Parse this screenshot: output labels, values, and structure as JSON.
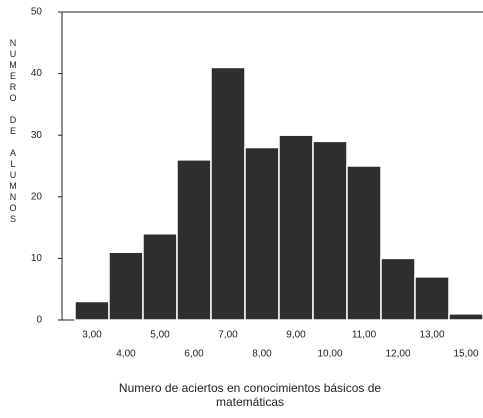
{
  "chart_data": {
    "type": "bar",
    "x_label": "Numero  de aciertos en conocimientos básicos de matemáticas",
    "y_label": "NUMERO DE ALUMNOS",
    "categories": [
      "3,00",
      "4,00",
      "5,00",
      "6,00",
      "7,00",
      "8,00",
      "9,00",
      "10,00",
      "11,00",
      "12,00",
      "13,00",
      "15,00"
    ],
    "values": [
      3,
      11,
      14,
      26,
      41,
      28,
      30,
      29,
      25,
      10,
      7,
      1
    ],
    "color": "#2e2e2e",
    "ylim": [
      0,
      50
    ],
    "yticks": [
      0,
      10,
      20,
      30,
      40,
      50
    ]
  }
}
